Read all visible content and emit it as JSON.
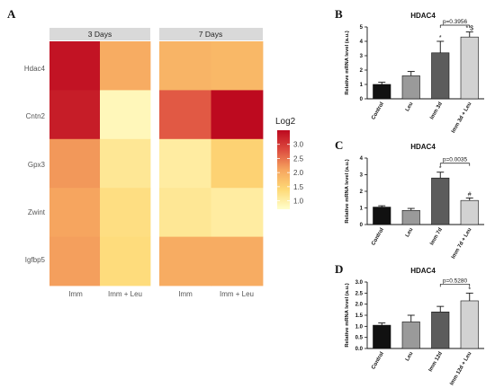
{
  "figure": {
    "panel_labels": [
      "A",
      "B",
      "C",
      "D"
    ]
  },
  "chart_data": [
    {
      "panel": "A",
      "type": "heatmap",
      "genes": [
        "Hdac4",
        "Cntn2",
        "Gpx3",
        "Zwint",
        "Igfbp5"
      ],
      "facets": [
        {
          "title": "3 Days",
          "columns": [
            "Imm",
            "Imm + Leu"
          ],
          "values": [
            [
              3.4,
              2.0
            ],
            [
              3.3,
              0.85
            ],
            [
              2.2,
              1.15
            ],
            [
              2.1,
              1.3
            ],
            [
              2.15,
              1.35
            ]
          ]
        },
        {
          "title": "7 Days",
          "columns": [
            "Imm",
            "Imm + Leu"
          ],
          "values": [
            [
              1.9,
              1.85
            ],
            [
              2.7,
              3.6
            ],
            [
              1.05,
              1.5
            ],
            [
              1.15,
              1.05
            ],
            [
              2.0,
              2.0
            ]
          ]
        }
      ],
      "legend": {
        "title": "Log2",
        "ticks": [
          1.0,
          1.5,
          2.0,
          2.5,
          3.0
        ],
        "min": 0.7,
        "max": 3.5,
        "colors": [
          "#ffffcc",
          "#fed976",
          "#f6a55f",
          "#dd4c3f",
          "#bd0a1f"
        ]
      }
    },
    {
      "panel": "B",
      "type": "bar",
      "title": "HDAC4",
      "ylabel": "Relative mRNA level (a.u.)",
      "ylim": [
        0,
        5
      ],
      "yticks": [
        0,
        1,
        2,
        3,
        4,
        5
      ],
      "categories": [
        "Control",
        "Leu",
        "Imm 3d",
        "Imm 3d + Leu"
      ],
      "values": [
        1.0,
        1.6,
        3.2,
        4.3
      ],
      "errors": [
        0.15,
        0.3,
        0.8,
        0.35
      ],
      "bar_colors": [
        "#111111",
        "#9a9a9a",
        "#5c5c5c",
        "#d2d2d2"
      ],
      "markers": [
        "",
        "",
        "*",
        "* $"
      ],
      "bracket": {
        "from": 2,
        "to": 3,
        "label": "p=0.3956"
      }
    },
    {
      "panel": "C",
      "type": "bar",
      "title": "HDAC4",
      "ylabel": "Relative mRNA level (a.u.)",
      "ylim": [
        0,
        4
      ],
      "yticks": [
        0,
        1,
        2,
        3,
        4
      ],
      "categories": [
        "Control",
        "Leu",
        "Imm 7d",
        "Imm 7d + Leu"
      ],
      "values": [
        1.05,
        0.85,
        2.8,
        1.45
      ],
      "errors": [
        0.08,
        0.12,
        0.35,
        0.15
      ],
      "bar_colors": [
        "#111111",
        "#9a9a9a",
        "#5c5c5c",
        "#d2d2d2"
      ],
      "markers": [
        "",
        "",
        "*",
        "#"
      ],
      "bracket": {
        "from": 2,
        "to": 3,
        "label": "p=0.0035"
      }
    },
    {
      "panel": "D",
      "type": "bar",
      "title": "HDAC4",
      "ylabel": "Relative mRNA level (a.u.)",
      "ylim": [
        0,
        3
      ],
      "yticks": [
        0.0,
        0.5,
        1.0,
        1.5,
        2.0,
        2.5,
        3.0
      ],
      "categories": [
        "Control",
        "Leu",
        "Imm 12d",
        "Imm 12d + Leu"
      ],
      "values": [
        1.05,
        1.2,
        1.65,
        2.15
      ],
      "errors": [
        0.1,
        0.3,
        0.25,
        0.35
      ],
      "bar_colors": [
        "#111111",
        "#9a9a9a",
        "#5c5c5c",
        "#d2d2d2"
      ],
      "markers": [
        "",
        "",
        "",
        "*"
      ],
      "bracket": {
        "from": 2,
        "to": 3,
        "label": "p=0.5280"
      }
    }
  ]
}
